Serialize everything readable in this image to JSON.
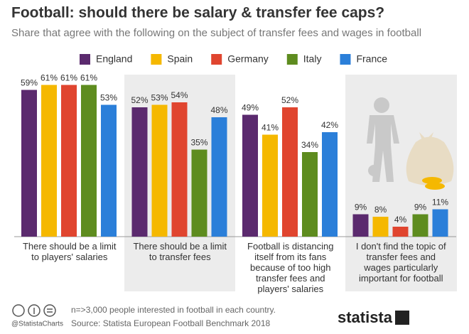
{
  "chart_data": {
    "type": "bar",
    "title": "Football: should there be salary & transfer fee caps?",
    "subtitle": "Share that agree with the following on the subject of transfer fees and wages in football",
    "categories": [
      "There should be a limit to players' salaries",
      "There should be a limit to transfer fees",
      "Football is distancing itself from its fans because of too high transfer fees and players' salaries",
      "I don't find the topic of transfer fees and wages particularly important for football"
    ],
    "series": [
      {
        "name": "England",
        "color": "#5b2a6e",
        "values": [
          59,
          52,
          49,
          9
        ],
        "value_labels": [
          "59%",
          "52%",
          "49%",
          "9%"
        ]
      },
      {
        "name": "Spain",
        "color": "#f5b800",
        "values": [
          61,
          53,
          41,
          8
        ],
        "value_labels": [
          "61%",
          "53%",
          "41%",
          "8%"
        ]
      },
      {
        "name": "Germany",
        "color": "#e0452f",
        "values": [
          61,
          54,
          52,
          4
        ],
        "value_labels": [
          "61%",
          "54%",
          "52%",
          "4%"
        ]
      },
      {
        "name": "Italy",
        "color": "#5e8c1f",
        "values": [
          61,
          35,
          34,
          9
        ],
        "value_labels": [
          "61%",
          "35%",
          "34%",
          "9%"
        ]
      },
      {
        "name": "France",
        "color": "#2b7fd9",
        "values": [
          53,
          48,
          42,
          11
        ],
        "value_labels": [
          "53%",
          "48%",
          "42%",
          "11%"
        ]
      }
    ],
    "note": "n=>3,000 people interested in football in each country.",
    "source": "Source: Statista European Football Benchmark 2018",
    "handle": "@StatistaCharts",
    "logo": "statista"
  }
}
